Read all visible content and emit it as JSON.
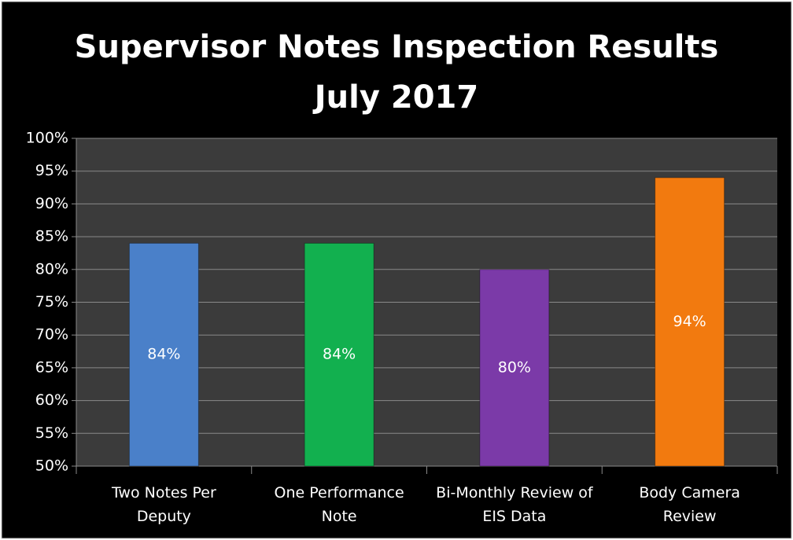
{
  "chart_data": {
    "type": "bar",
    "title": "Supervisor Notes Inspection Results",
    "subtitle": "July 2017",
    "categories": [
      "Two Notes Per Deputy",
      "One Performance Note",
      "Bi-Monthly Review of EIS Data",
      "Body Camera Review"
    ],
    "values": [
      84,
      84,
      80,
      94
    ],
    "value_labels": [
      "84%",
      "84%",
      "80%",
      "94%"
    ],
    "colors": [
      "#4a80c9",
      "#12b04f",
      "#7b3aa8",
      "#f27a0f"
    ],
    "ylim": [
      50,
      100
    ],
    "yticks": [
      {
        "value": 50,
        "label": "50%"
      },
      {
        "value": 55,
        "label": "55%"
      },
      {
        "value": 60,
        "label": "60%"
      },
      {
        "value": 65,
        "label": "65%"
      },
      {
        "value": 70,
        "label": "70%"
      },
      {
        "value": 75,
        "label": "75%"
      },
      {
        "value": 80,
        "label": "80%"
      },
      {
        "value": 85,
        "label": "85%"
      },
      {
        "value": 90,
        "label": "90%"
      },
      {
        "value": 95,
        "label": "95%"
      },
      {
        "value": 100,
        "label": "100%"
      }
    ],
    "grid": true
  }
}
